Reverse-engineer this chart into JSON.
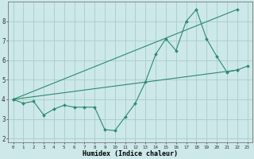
{
  "xlabel": "Humidex (Indice chaleur)",
  "x_values": [
    0,
    1,
    2,
    3,
    4,
    5,
    6,
    7,
    8,
    9,
    10,
    11,
    12,
    13,
    14,
    15,
    16,
    17,
    18,
    19,
    20,
    21,
    22,
    23
  ],
  "line1": [
    4.0,
    3.8,
    3.9,
    3.2,
    3.5,
    3.7,
    3.6,
    3.6,
    3.6,
    2.45,
    2.4,
    3.1,
    3.8,
    4.9,
    6.3,
    7.1,
    6.5,
    8.0,
    8.6,
    7.1,
    6.2,
    5.4,
    5.5,
    5.7
  ],
  "line2_x": [
    0,
    22
  ],
  "line2_y": [
    4.0,
    5.5
  ],
  "line3_x": [
    0,
    22
  ],
  "line3_y": [
    4.0,
    8.6
  ],
  "line_color": "#2d8b6f",
  "bg_color": "#cce8e8",
  "grid_color": "#aacccc",
  "ylim": [
    1.8,
    9.0
  ],
  "xlim": [
    -0.5,
    23.5
  ],
  "yticks": [
    2,
    3,
    4,
    5,
    6,
    7,
    8
  ],
  "xticks": [
    0,
    1,
    2,
    3,
    4,
    5,
    6,
    7,
    8,
    9,
    10,
    11,
    12,
    13,
    14,
    15,
    16,
    17,
    18,
    19,
    20,
    21,
    22,
    23
  ]
}
